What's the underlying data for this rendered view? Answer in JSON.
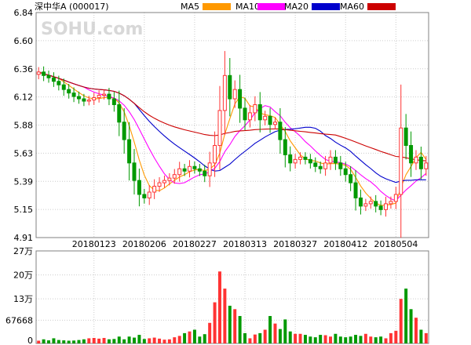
{
  "chart_data": {
    "type": "candlestick",
    "title": "深中华A (000017)",
    "watermark": "SOHU.com",
    "legend": [
      {
        "key": "ma5",
        "label": "MA5",
        "color": "#FF9900"
      },
      {
        "key": "ma10",
        "label": "MA10",
        "color": "#FF00FF"
      },
      {
        "key": "ma20",
        "label": "MA20",
        "color": "#0000CC"
      },
      {
        "key": "ma60",
        "label": "MA60",
        "color": "#CC0000"
      }
    ],
    "price_axis": {
      "ticks": [
        "6.84",
        "6.60",
        "6.36",
        "6.12",
        "5.88",
        "5.63",
        "5.39",
        "5.15",
        "4.91"
      ],
      "min": 4.91,
      "max": 6.84
    },
    "volume_axis": {
      "ticks": [
        "27万",
        "20万",
        "13万",
        "67668",
        "0"
      ],
      "tick_values": [
        270000,
        200000,
        130000,
        67668,
        0
      ],
      "min": 0,
      "max": 270000
    },
    "x_labels": [
      {
        "label": "20180123",
        "index": 11
      },
      {
        "label": "20180206",
        "index": 21
      },
      {
        "label": "20180227",
        "index": 31
      },
      {
        "label": "20180313",
        "index": 41
      },
      {
        "label": "20180327",
        "index": 51
      },
      {
        "label": "20180412",
        "index": 61
      },
      {
        "label": "20180504",
        "index": 71
      }
    ],
    "colors": {
      "up": "#FF3333",
      "down": "#009900",
      "volume_up": "#FF3333",
      "volume_down": "#009900"
    },
    "closes": [
      6.33,
      6.3,
      6.28,
      6.25,
      6.22,
      6.18,
      6.15,
      6.12,
      6.1,
      6.08,
      6.09,
      6.11,
      6.13,
      6.14,
      6.1,
      6.05,
      5.9,
      5.75,
      5.55,
      5.4,
      5.28,
      5.25,
      5.3,
      5.35,
      5.38,
      5.4,
      5.42,
      5.45,
      5.5,
      5.48,
      5.52,
      5.5,
      5.48,
      5.44,
      5.55,
      5.7,
      6.0,
      6.3,
      6.1,
      6.18,
      6.02,
      5.92,
      5.98,
      6.05,
      5.92,
      5.95,
      5.88,
      5.9,
      5.75,
      5.62,
      5.55,
      5.58,
      5.6,
      5.58,
      5.55,
      5.52,
      5.5,
      5.55,
      5.6,
      5.55,
      5.5,
      5.45,
      5.38,
      5.25,
      5.18,
      5.2,
      5.22,
      5.18,
      5.15,
      5.2,
      5.22,
      5.28,
      5.85,
      5.7,
      5.55,
      5.6,
      5.5,
      5.55
    ],
    "volumes": [
      8000,
      12000,
      9000,
      15000,
      10000,
      9000,
      8000,
      8500,
      10000,
      12000,
      15000,
      16000,
      14000,
      16000,
      12000,
      13000,
      20000,
      12000,
      20000,
      17000,
      25000,
      13000,
      15000,
      17000,
      14000,
      11000,
      12000,
      18000,
      22000,
      30000,
      35000,
      40000,
      20000,
      27000,
      60000,
      120000,
      210000,
      160000,
      110000,
      100000,
      80000,
      30000,
      15000,
      26000,
      30000,
      40000,
      80000,
      58000,
      42000,
      70000,
      35000,
      28000,
      28000,
      25000,
      20000,
      18000,
      25000,
      24000,
      20000,
      28000,
      20000,
      18000,
      20000,
      25000,
      22000,
      28000,
      20000,
      18000,
      20000,
      15000,
      30000,
      37000,
      130000,
      160000,
      100000,
      75000,
      40000,
      30000
    ]
  }
}
